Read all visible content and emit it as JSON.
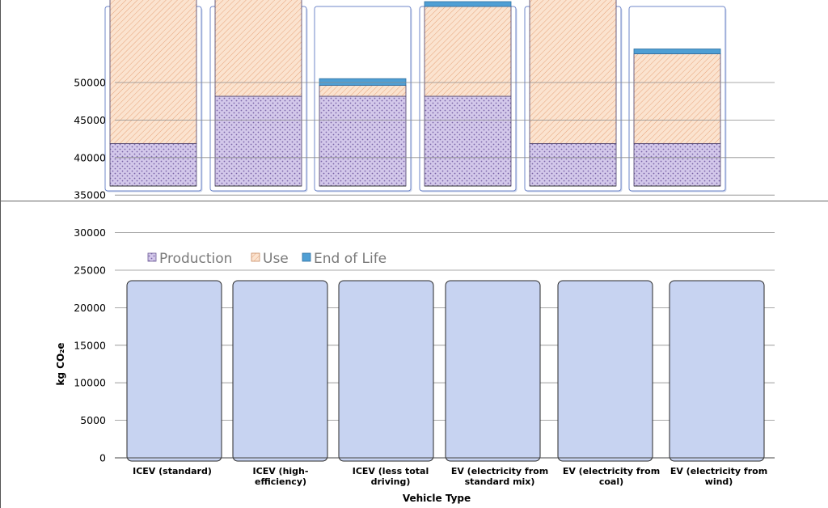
{
  "chart_data": {
    "type": "bar",
    "stacked": true,
    "categories": [
      [
        "ICEV (standard)"
      ],
      [
        "ICEV (high-",
        "efficiency)"
      ],
      [
        "ICEV (less total",
        "driving)"
      ],
      [
        "EV (electricity from",
        "standard mix)"
      ],
      [
        "EV (electricity from",
        "coal)"
      ],
      [
        "EV (electricity from",
        "wind)"
      ]
    ],
    "series": [
      {
        "name": "Production",
        "values": [
          7000,
          14800,
          14800,
          14800,
          7000,
          7000
        ]
      },
      {
        "name": "Use",
        "values": [
          24500,
          29500,
          1800,
          14800,
          29500,
          14800
        ]
      },
      {
        "name": "End of Life",
        "values": [
          800,
          800,
          1100,
          800,
          800,
          800
        ]
      }
    ],
    "ylabel": "kg CO₂e",
    "xlabel": "Vehicle Type",
    "ylim": [
      0,
      50000
    ],
    "yticks": [
      0,
      5000,
      10000,
      15000,
      20000,
      25000,
      30000,
      35000,
      40000,
      45000,
      50000
    ],
    "colors": {
      "Production": "#c7b8e0",
      "Use": "#f9d9c0",
      "End of Life": "#4f9fd4",
      "panel": "#c7d3f1",
      "panel_border": "#5a74c8"
    }
  }
}
